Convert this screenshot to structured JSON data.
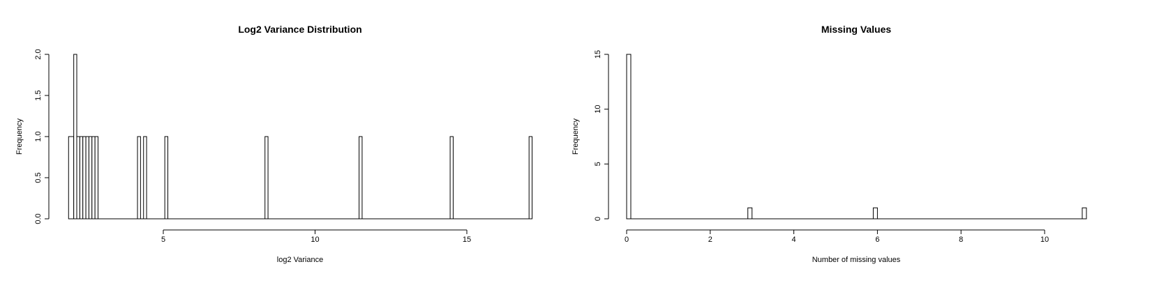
{
  "chart_data": [
    {
      "type": "bar",
      "title": "Log2 Variance Distribution",
      "xlabel": "log2 Variance",
      "ylabel": "Frequency",
      "xlim": [
        2,
        17
      ],
      "ylim": [
        0,
        2
      ],
      "xticks": [
        5,
        10,
        15
      ],
      "yticks": [
        0.0,
        0.5,
        1.0,
        1.5,
        2.0
      ],
      "ytick_labels": [
        "0.0",
        "0.5",
        "1.0",
        "1.5",
        "2.0"
      ],
      "bin_width": 0.1,
      "bars": [
        {
          "x0": 1.88,
          "x1": 2.05,
          "count": 1
        },
        {
          "x0": 2.05,
          "x1": 2.15,
          "count": 2
        },
        {
          "x0": 2.15,
          "x1": 2.25,
          "count": 1
        },
        {
          "x0": 2.25,
          "x1": 2.35,
          "count": 1
        },
        {
          "x0": 2.35,
          "x1": 2.45,
          "count": 1
        },
        {
          "x0": 2.45,
          "x1": 2.55,
          "count": 1
        },
        {
          "x0": 2.55,
          "x1": 2.65,
          "count": 1
        },
        {
          "x0": 2.65,
          "x1": 2.75,
          "count": 1
        },
        {
          "x0": 2.75,
          "x1": 2.85,
          "count": 1
        },
        {
          "x0": 4.15,
          "x1": 4.25,
          "count": 1
        },
        {
          "x0": 4.35,
          "x1": 4.45,
          "count": 1
        },
        {
          "x0": 5.05,
          "x1": 5.15,
          "count": 1
        },
        {
          "x0": 8.35,
          "x1": 8.45,
          "count": 1
        },
        {
          "x0": 11.45,
          "x1": 11.55,
          "count": 1
        },
        {
          "x0": 14.45,
          "x1": 14.55,
          "count": 1
        },
        {
          "x0": 17.05,
          "x1": 17.15,
          "count": 1
        }
      ],
      "grid": false
    },
    {
      "type": "bar",
      "title": "Missing Values",
      "xlabel": "Number of missing values",
      "ylabel": "Frequency",
      "xlim": [
        0,
        11
      ],
      "ylim": [
        0,
        15
      ],
      "xticks": [
        0,
        2,
        4,
        6,
        8,
        10
      ],
      "yticks": [
        0,
        5,
        10,
        15
      ],
      "ytick_labels": [
        "0",
        "5",
        "10",
        "15"
      ],
      "bin_width": 0.1,
      "bars": [
        {
          "x0": 0.0,
          "x1": 0.1,
          "count": 15
        },
        {
          "x0": 2.9,
          "x1": 3.0,
          "count": 1
        },
        {
          "x0": 5.9,
          "x1": 6.0,
          "count": 1
        },
        {
          "x0": 10.9,
          "x1": 11.0,
          "count": 1
        }
      ],
      "grid": false
    }
  ]
}
